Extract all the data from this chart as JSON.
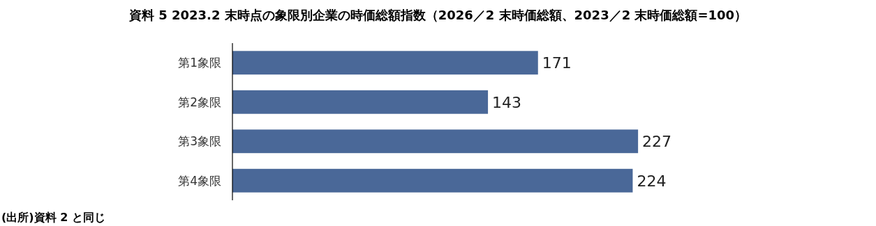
{
  "chart_data": {
    "type": "bar",
    "orientation": "horizontal",
    "title": "資料 5 2023.2 末時点の象限別企業の時価総額指数（2026／2 末時価総額、2023／2 末時価総額=100）",
    "categories": [
      "第1象限",
      "第2象限",
      "第3象限",
      "第4象限"
    ],
    "values": [
      171,
      143,
      227,
      224
    ],
    "color": "#4a6898",
    "data_labels": true,
    "annotations": [
      "(出所)資料 2 と同じ"
    ]
  }
}
